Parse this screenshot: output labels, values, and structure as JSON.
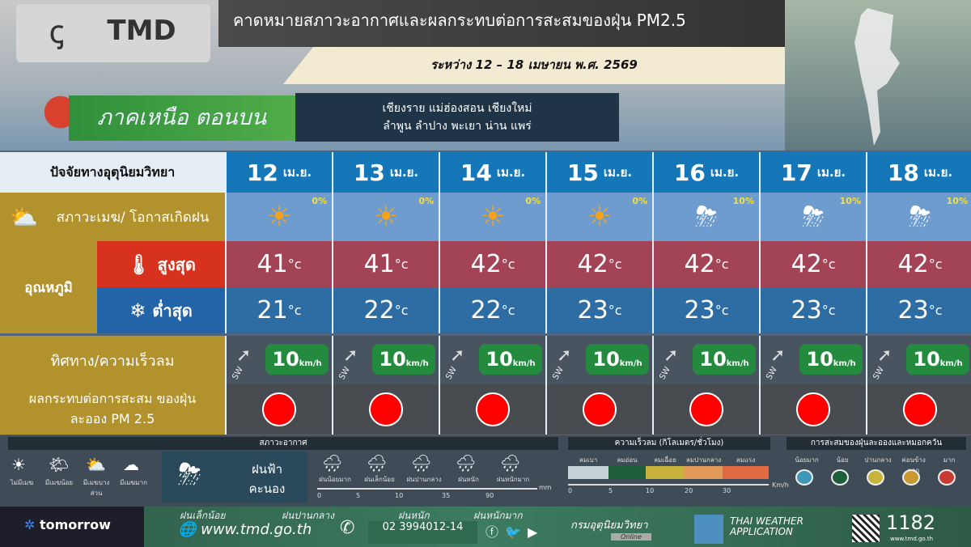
{
  "header": {
    "title": "คาดหมายสภาวะอากาศและผลกระทบต่อการสะสมของฝุ่น PM2.5",
    "date_range": "ระหว่าง 12 – 18 เมษายน พ.ศ. 2569",
    "logo_tmd": "TMD",
    "region": "ภาคเหนือ ตอนบน",
    "provinces_line1": "เชียงราย แม่ฮ่องสอน เชียงใหม่",
    "provinces_line2": "ลำพูน ลำปาง พะเยา น่าน แพร่"
  },
  "table": {
    "factor_header": "ปัจจัยทางอุตุนิยมวิทยา",
    "weather_label": "สภาวะเมฆ/ โอกาสเกิดฝน",
    "temp_label": "อุณหภูมิ",
    "max_label": "สูงสุด",
    "min_label": "ต่ำสุด",
    "wind_label": "ทิศทาง/ความเร็วลม",
    "pm_label": "ผลกระทบต่อการสะสม ของฝุ่นละออง PM 2.5",
    "unit_c": "°c",
    "month": "เม.ย.",
    "wind_unit": "km/h",
    "days": [
      {
        "day": "12",
        "icon": "sun",
        "rain": "0%",
        "max": "41",
        "min": "21",
        "wind_dir": "SW",
        "wind_speed": "10",
        "pm_level": "มาก",
        "pm_color": "#ff0000"
      },
      {
        "day": "13",
        "icon": "sun",
        "rain": "0%",
        "max": "41",
        "min": "22",
        "wind_dir": "SW",
        "wind_speed": "10",
        "pm_level": "มาก",
        "pm_color": "#ff0000"
      },
      {
        "day": "14",
        "icon": "sun",
        "rain": "0%",
        "max": "42",
        "min": "22",
        "wind_dir": "SW",
        "wind_speed": "10",
        "pm_level": "มาก",
        "pm_color": "#ff0000"
      },
      {
        "day": "15",
        "icon": "sun",
        "rain": "0%",
        "max": "42",
        "min": "23",
        "wind_dir": "SW",
        "wind_speed": "10",
        "pm_level": "มาก",
        "pm_color": "#ff0000"
      },
      {
        "day": "16",
        "icon": "thunderstorm",
        "rain": "10%",
        "max": "42",
        "min": "23",
        "wind_dir": "SW",
        "wind_speed": "10",
        "pm_level": "มาก",
        "pm_color": "#ff0000"
      },
      {
        "day": "17",
        "icon": "thunderstorm",
        "rain": "10%",
        "max": "42",
        "min": "23",
        "wind_dir": "SW",
        "wind_speed": "10",
        "pm_level": "มาก",
        "pm_color": "#ff0000"
      },
      {
        "day": "18",
        "icon": "thunderstorm",
        "rain": "10%",
        "max": "42",
        "min": "23",
        "wind_dir": "SW",
        "wind_speed": "10",
        "pm_level": "มาก",
        "pm_color": "#ff0000"
      }
    ]
  },
  "legend": {
    "weather_title": "สภาวะอากาศ",
    "sky": [
      "ไม่มีเมฆ",
      "มีเมฆน้อย",
      "มีเมฆบางส่วน",
      "มีเมฆมาก"
    ],
    "thunder": "ฝนฟ้า คะนอง",
    "rain": [
      "ฝนน้อยมาก",
      "ฝนเล็กน้อย",
      "ฝนปานกลาง",
      "ฝนหนัก",
      "ฝนหนักมาก"
    ],
    "rain_ticks": [
      "0",
      "5",
      "10",
      "35",
      "90"
    ],
    "rain_unit": "mm",
    "wind_title": "ความเร็วลม (กิโลเมตร/ชั่วโมง)",
    "wind": [
      "ลมเบา",
      "ลมอ่อน",
      "ลมเฉื่อย",
      "ลมปานกลาง",
      "ลมแรง"
    ],
    "wind_colors": [
      "#c5d3d8",
      "#1f5e3a",
      "#c9b23c",
      "#e29a5b",
      "#e06a44"
    ],
    "wind_ticks": [
      "0",
      "5",
      "10",
      "20",
      "30"
    ],
    "wind_unit": "Km/h",
    "pm_title": "การสะสมของฝุ่นละอองและหมอกควัน",
    "pm": [
      "น้อยมาก",
      "น้อย",
      "ปานกลาง",
      "ค่อนข้างมาก",
      "มาก"
    ],
    "pm_colors": [
      "#3f98b8",
      "#1f5e3a",
      "#c7b43b",
      "#c99a33",
      "#c93a32"
    ]
  },
  "footer": {
    "brand": "tomorrow",
    "website": "www.tmd.go.th",
    "phone": "02 3994012-14",
    "tmd_online": "กรมอุตุนิยมวิทยา",
    "online": "Online",
    "app": "THAI WEATHER APPLICATION",
    "hotline": "1182",
    "hotline_site": "www.tmd.go.th",
    "overlay": [
      "ฝนเล็กน้อย",
      "ฝนปานกลาง",
      "ฝนหนัก",
      "ฝนหนักมาก"
    ]
  }
}
